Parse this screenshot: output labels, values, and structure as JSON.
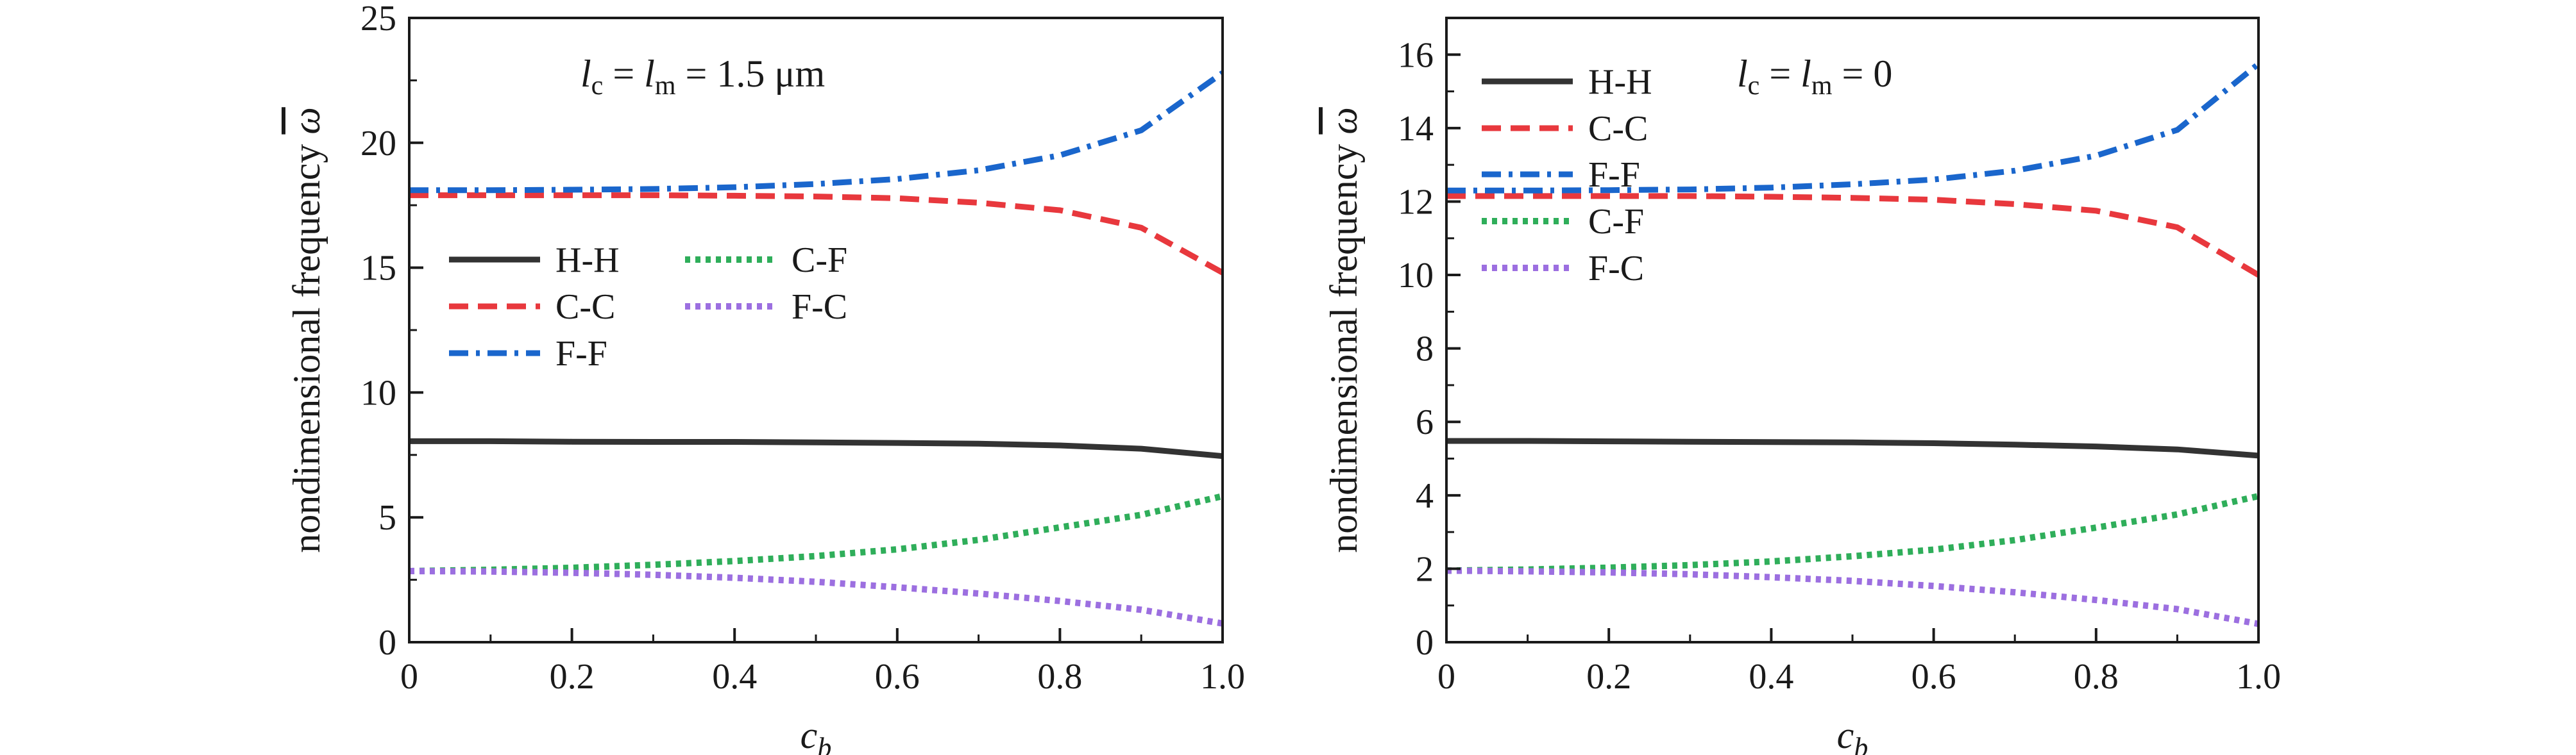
{
  "chart_data": [
    {
      "type": "line",
      "xlabel": "c",
      "xlabel_sub": "b",
      "ylabel": "nondimensional frequency",
      "ylabel_symbol": "ω",
      "xlim": [
        0,
        1.0
      ],
      "ylim": [
        0,
        25
      ],
      "xticks": [
        0,
        0.2,
        0.4,
        0.6,
        0.8,
        1.0
      ],
      "xtick_labels": [
        "0",
        "0.2",
        "0.4",
        "0.6",
        "0.8",
        "1.0"
      ],
      "yticks": [
        0,
        5,
        10,
        15,
        20,
        25
      ],
      "ytick_labels": [
        "0",
        "5",
        "10",
        "15",
        "20",
        "25"
      ],
      "annotation": {
        "l1": "l",
        "s1": "c",
        "eq1": " = ",
        "l2": "l",
        "s2": "m",
        "value": " = 1.5 μm"
      },
      "legend_placement": "middle-left, two columns",
      "grid": false,
      "x": [
        0,
        0.1,
        0.2,
        0.3,
        0.4,
        0.5,
        0.6,
        0.7,
        0.8,
        0.9,
        1.0
      ],
      "series": [
        {
          "name": "H-H",
          "color": "#333333",
          "style": "solid",
          "values": [
            8.05,
            8.05,
            8.03,
            8.02,
            8.02,
            8.0,
            7.98,
            7.95,
            7.88,
            7.75,
            7.45
          ]
        },
        {
          "name": "C-C",
          "color": "#e8383d",
          "style": "dash",
          "values": [
            17.9,
            17.9,
            17.9,
            17.9,
            17.88,
            17.85,
            17.78,
            17.6,
            17.3,
            16.6,
            14.8
          ]
        },
        {
          "name": "F-F",
          "color": "#1a66cc",
          "style": "dashdot",
          "values": [
            18.1,
            18.1,
            18.12,
            18.15,
            18.22,
            18.35,
            18.55,
            18.9,
            19.5,
            20.5,
            22.8
          ]
        },
        {
          "name": "C-F",
          "color": "#2fae5a",
          "style": "dot",
          "values": [
            2.85,
            2.9,
            2.98,
            3.1,
            3.25,
            3.45,
            3.72,
            4.1,
            4.6,
            5.1,
            5.85
          ]
        },
        {
          "name": "F-C",
          "color": "#9c6fe0",
          "style": "dot",
          "values": [
            2.85,
            2.83,
            2.78,
            2.7,
            2.58,
            2.42,
            2.2,
            1.95,
            1.65,
            1.3,
            0.75
          ]
        }
      ]
    },
    {
      "type": "line",
      "xlabel": "c",
      "xlabel_sub": "b",
      "ylabel": "nondimensional frequency",
      "ylabel_symbol": "ω",
      "xlim": [
        0,
        1.0
      ],
      "ylim": [
        0,
        17
      ],
      "xticks": [
        0,
        0.2,
        0.4,
        0.6,
        0.8,
        1.0
      ],
      "xtick_labels": [
        "0",
        "0.2",
        "0.4",
        "0.6",
        "0.8",
        "1.0"
      ],
      "yticks": [
        0,
        2,
        4,
        6,
        8,
        10,
        12,
        14,
        16
      ],
      "ytick_labels": [
        "0",
        "2",
        "4",
        "6",
        "8",
        "10",
        "12",
        "14",
        "16"
      ],
      "annotation": {
        "l1": "l",
        "s1": "c",
        "eq1": " = ",
        "l2": "l",
        "s2": "m",
        "value": " = 0"
      },
      "legend_placement": "top-left, one column",
      "grid": false,
      "x": [
        0,
        0.1,
        0.2,
        0.3,
        0.4,
        0.5,
        0.6,
        0.7,
        0.8,
        0.9,
        1.0
      ],
      "series": [
        {
          "name": "H-H",
          "color": "#333333",
          "style": "solid",
          "values": [
            5.48,
            5.48,
            5.47,
            5.46,
            5.45,
            5.44,
            5.42,
            5.38,
            5.33,
            5.25,
            5.08
          ]
        },
        {
          "name": "C-C",
          "color": "#e8383d",
          "style": "dash",
          "values": [
            12.15,
            12.15,
            12.15,
            12.15,
            12.13,
            12.1,
            12.05,
            11.93,
            11.75,
            11.3,
            10.0
          ]
        },
        {
          "name": "F-F",
          "color": "#1a66cc",
          "style": "dashdot",
          "values": [
            12.3,
            12.3,
            12.31,
            12.33,
            12.38,
            12.47,
            12.6,
            12.84,
            13.25,
            13.95,
            15.75
          ]
        },
        {
          "name": "C-F",
          "color": "#2fae5a",
          "style": "dot",
          "values": [
            1.95,
            1.98,
            2.03,
            2.1,
            2.2,
            2.34,
            2.52,
            2.78,
            3.12,
            3.48,
            3.98
          ]
        },
        {
          "name": "F-C",
          "color": "#9c6fe0",
          "style": "dot",
          "values": [
            1.95,
            1.93,
            1.9,
            1.85,
            1.77,
            1.67,
            1.53,
            1.36,
            1.15,
            0.9,
            0.5
          ]
        }
      ]
    }
  ]
}
